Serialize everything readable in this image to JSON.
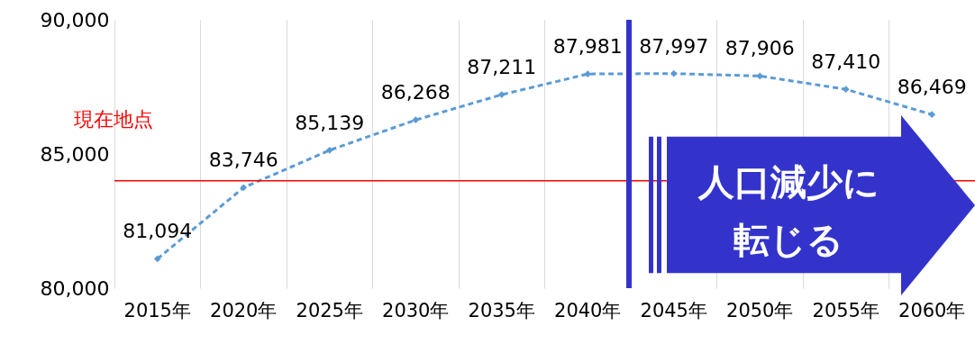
{
  "chart_data": {
    "type": "line",
    "categories": [
      "2015年",
      "2020年",
      "2025年",
      "2030年",
      "2035年",
      "2040年",
      "2045年",
      "2050年",
      "2055年",
      "2060年"
    ],
    "series": [
      {
        "color": "#5b9bd5",
        "values": [
          81094,
          83746,
          85139,
          86268,
          87211,
          87981,
          87997,
          87906,
          87410,
          86469
        ],
        "value_labels": [
          "81,094",
          "83,746",
          "85,139",
          "86,268",
          "87,211",
          "87,981",
          "87,997",
          "87,906",
          "87,410",
          "86,469"
        ]
      }
    ],
    "ylim": [
      80000,
      90000
    ],
    "yticks": [
      {
        "value": 80000,
        "label": "80,000"
      },
      {
        "value": 85000,
        "label": "85,000"
      },
      {
        "value": 90000,
        "label": "90,000"
      }
    ],
    "grid": "x",
    "marker": "diamond",
    "line_style": "dashed",
    "ref_lines": [
      {
        "axis": "y",
        "value": 84000,
        "label": "現在地点",
        "color": "#ff0000"
      },
      {
        "axis": "x",
        "value": "2045年",
        "color": "#3333cc"
      }
    ],
    "annotations": [
      "人口減少に転じる"
    ]
  }
}
